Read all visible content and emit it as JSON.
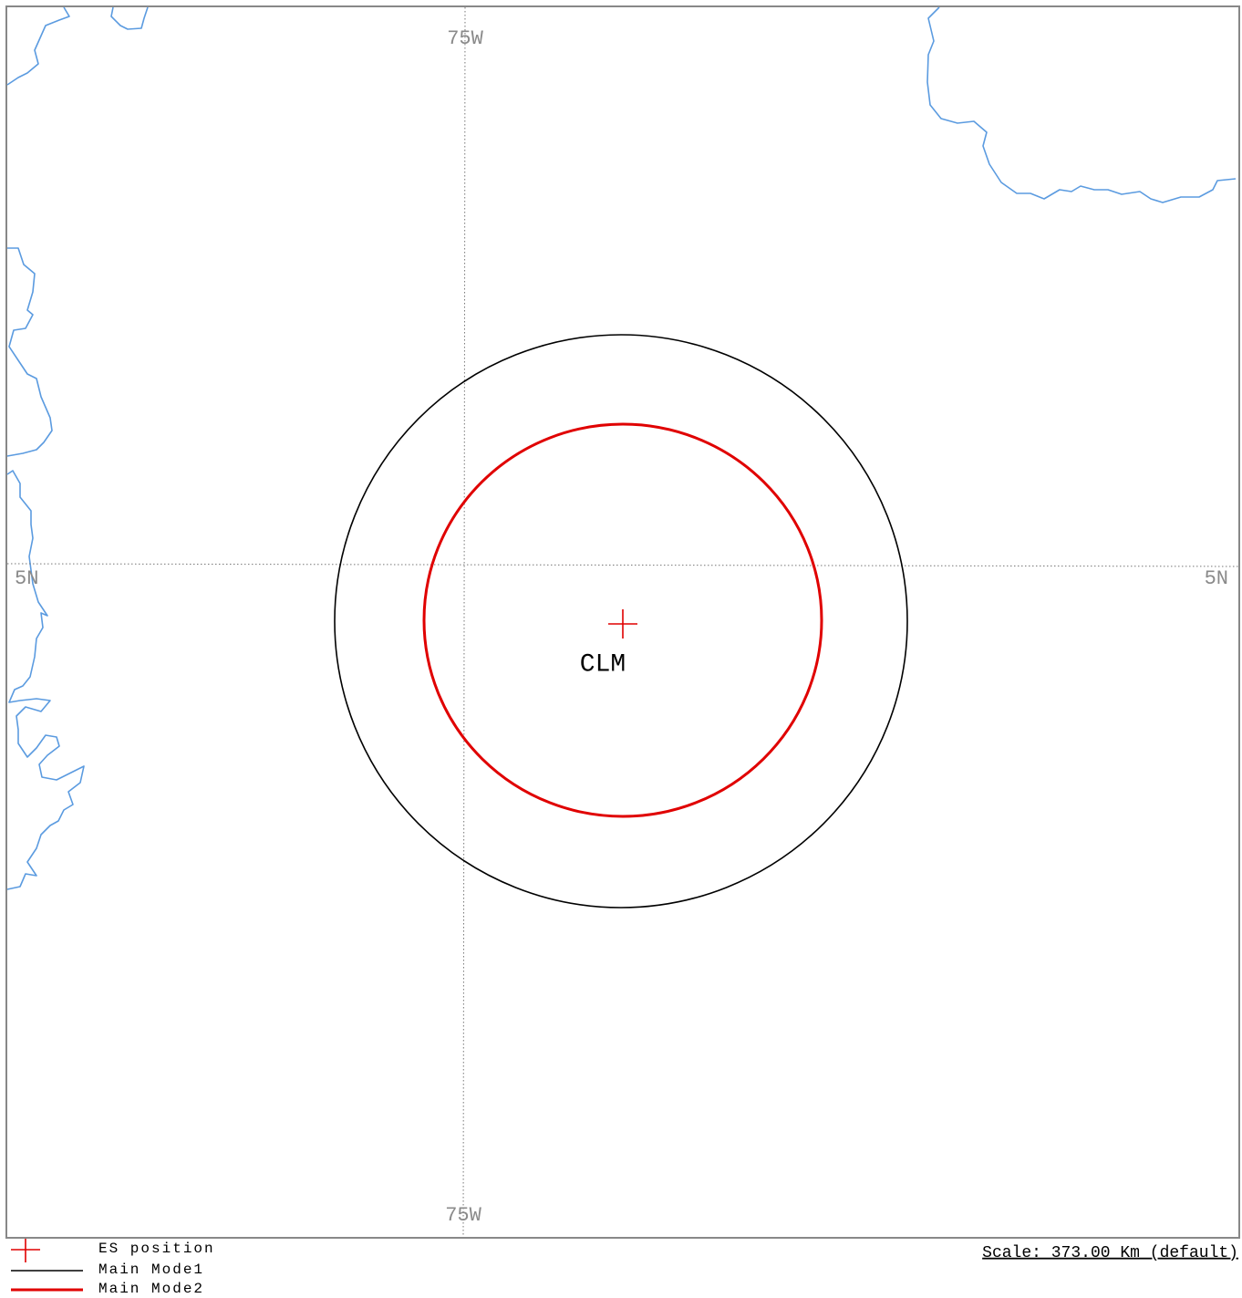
{
  "map": {
    "grid": {
      "meridian_labels": [
        "75W",
        "75W"
      ],
      "parallel_labels": [
        "5N",
        "5N"
      ]
    },
    "station": "CLM",
    "legend": [
      "ES position",
      "Main Mode1",
      "Main Mode2"
    ],
    "scale": "Scale: 373.00 Km (default)"
  }
}
